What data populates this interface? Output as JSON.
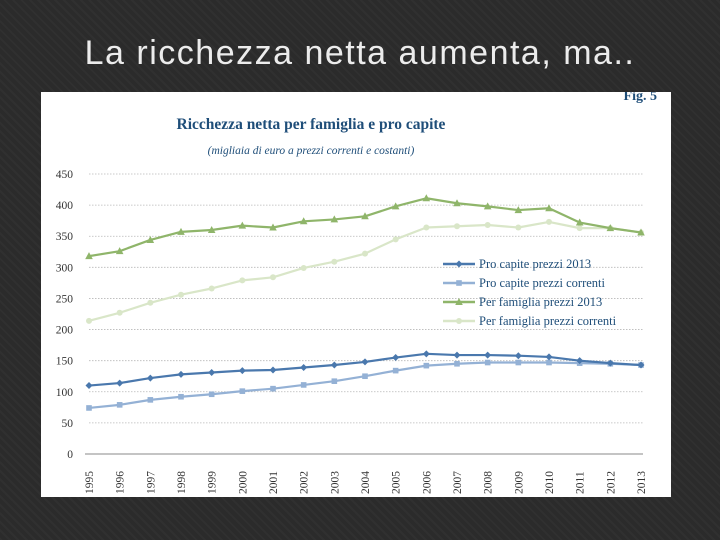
{
  "slide": {
    "title": "La ricchezza netta aumenta, ma.."
  },
  "figure": {
    "label": "Fig. 5"
  },
  "colors": {
    "pro_capite_2013": "#4a78ad",
    "pro_capite_correnti": "#94b1d5",
    "famiglia_2013": "#8fb56a",
    "famiglia_correnti": "#d9e6c8",
    "text": "#1f4e79",
    "axis": "#333333"
  },
  "chart_data": {
    "type": "line",
    "title": "Ricchezza netta per famiglia e pro capite",
    "subtitle": "(migliaia di euro a prezzi correnti e costanti)",
    "xlabel": "",
    "ylabel": "",
    "ylim": [
      0,
      450
    ],
    "yticks": [
      "0",
      "50",
      "100",
      "150",
      "200",
      "250",
      "300",
      "350",
      "400",
      "450"
    ],
    "grid": true,
    "legend_position": "center-right",
    "categories": [
      "1995",
      "1996",
      "1997",
      "1998",
      "1999",
      "2000",
      "2001",
      "2002",
      "2003",
      "2004",
      "2005",
      "2006",
      "2007",
      "2008",
      "2009",
      "2010",
      "2011",
      "2012",
      "2013"
    ],
    "series": [
      {
        "name": "Pro capite prezzi 2013",
        "color": "#4a78ad",
        "marker": "diamond",
        "values": [
          110,
          114,
          122,
          128,
          131,
          134,
          135,
          139,
          143,
          148,
          155,
          161,
          159,
          159,
          158,
          156,
          150,
          146,
          143
        ]
      },
      {
        "name": "Pro capite prezzi correnti",
        "color": "#94b1d5",
        "marker": "square",
        "values": [
          74,
          79,
          87,
          92,
          96,
          101,
          105,
          111,
          117,
          125,
          134,
          142,
          145,
          147,
          147,
          147,
          146,
          145,
          143
        ]
      },
      {
        "name": "Per famiglia prezzi 2013",
        "color": "#8fb56a",
        "marker": "triangle",
        "values": [
          318,
          326,
          344,
          357,
          360,
          367,
          364,
          374,
          377,
          382,
          398,
          411,
          403,
          398,
          392,
          395,
          372,
          363,
          356
        ]
      },
      {
        "name": "Per famiglia prezzi correnti",
        "color": "#d9e6c8",
        "marker": "circle",
        "values": [
          214,
          227,
          243,
          256,
          266,
          279,
          284,
          299,
          309,
          322,
          345,
          364,
          366,
          368,
          364,
          373,
          363,
          363,
          356
        ]
      }
    ]
  }
}
